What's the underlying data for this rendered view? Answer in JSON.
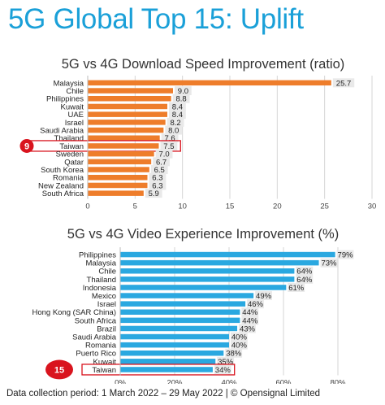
{
  "title": "5G Global Top 15: Uplift",
  "footer": "Data collection period: 1 March 2022 – 29 May 2022 | © Opensignal Limited",
  "colors": {
    "title": "#1aa0d8",
    "download_bar": "#ee7d2b",
    "video_bar": "#2aa8e0",
    "highlight": "#d9141e"
  },
  "chart_data": [
    {
      "type": "bar",
      "orientation": "horizontal",
      "title": "5G vs 4G Download Speed Improvement (ratio)",
      "categories": [
        "Malaysia",
        "Chile",
        "Philippines",
        "Kuwait",
        "UAE",
        "Israel",
        "Saudi Arabia",
        "Thailand",
        "Taiwan",
        "Sweden",
        "Qatar",
        "South Korea",
        "Romania",
        "New Zealand",
        "South Africa"
      ],
      "values": [
        25.7,
        9.0,
        8.8,
        8.4,
        8.4,
        8.2,
        8.0,
        7.6,
        7.5,
        7.0,
        6.7,
        6.5,
        6.3,
        6.3,
        5.9
      ],
      "value_labels": [
        "25.7",
        "9.0",
        "8.8",
        "8.4",
        "8.4",
        "8.2",
        "8.0",
        "7.6",
        "7.5",
        "7.0",
        "6.7",
        "6.5",
        "6.3",
        "6.3",
        "5.9"
      ],
      "xlim": [
        0,
        30
      ],
      "xticks": [
        "0",
        "5",
        "10",
        "15",
        "20",
        "25",
        "30"
      ],
      "grid": true,
      "highlight": {
        "category": "Taiwan",
        "rank": "9"
      }
    },
    {
      "type": "bar",
      "orientation": "horizontal",
      "title": "5G vs 4G Video Experience Improvement (%)",
      "categories": [
        "Philippines",
        "Malaysia",
        "Chile",
        "Thailand",
        "Indonesia",
        "Mexico",
        "Israel",
        "Hong Kong (SAR China)",
        "South Africa",
        "Brazil",
        "Saudi Arabia",
        "Romania",
        "Puerto Rico",
        "Kuwait",
        "Taiwan"
      ],
      "values": [
        79,
        73,
        64,
        64,
        61,
        49,
        46,
        44,
        44,
        43,
        40,
        40,
        38,
        35,
        34
      ],
      "value_labels": [
        "79%",
        "73%",
        "64%",
        "64%",
        "61%",
        "49%",
        "46%",
        "44%",
        "44%",
        "43%",
        "40%",
        "40%",
        "38%",
        "35%",
        "34%"
      ],
      "xlim": [
        0,
        80
      ],
      "xticks": [
        "0%",
        "20%",
        "40%",
        "60%",
        "80%"
      ],
      "grid": true,
      "highlight": {
        "category": "Taiwan",
        "rank": "15"
      }
    }
  ]
}
